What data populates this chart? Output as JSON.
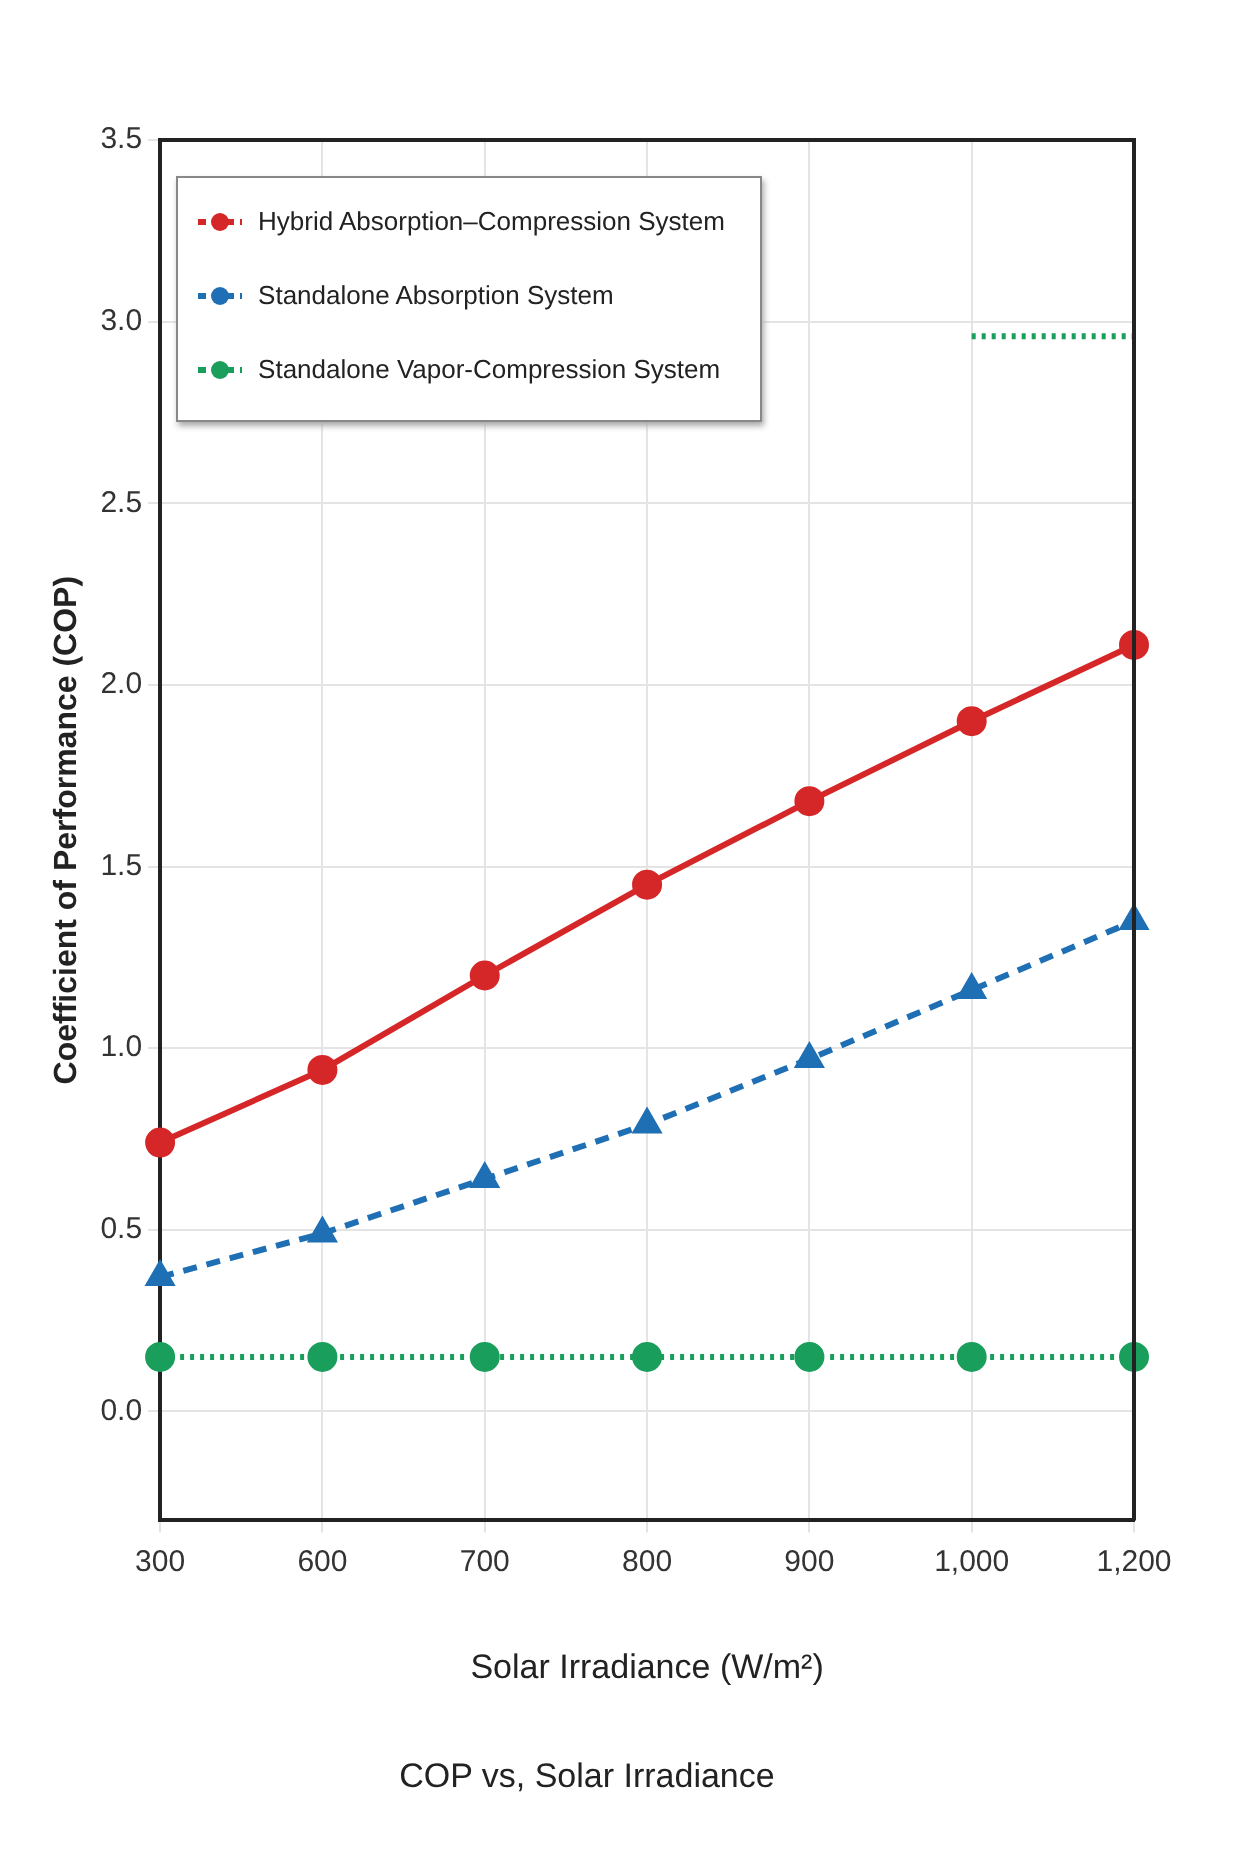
{
  "chart_data": {
    "type": "line",
    "title": "COP vs, Solar Irradiance",
    "xlabel": "Solar Irradiance (W/m²)",
    "ylabel": "Coefficient of Performance (COP)",
    "categories": [
      "300",
      "600",
      "700",
      "800",
      "900",
      "1,000",
      "1,200"
    ],
    "series": [
      {
        "name": "Hybrid Absorption–Compression System",
        "color": "#d62728",
        "marker": "circle",
        "line_style": "solid",
        "values": [
          0.74,
          0.94,
          1.2,
          1.45,
          1.68,
          1.9,
          2.11
        ]
      },
      {
        "name": "Standalone Absorption System",
        "color": "#1f6fb4",
        "marker": "triangle",
        "line_style": "dashed",
        "values": [
          0.37,
          0.49,
          0.64,
          0.79,
          0.97,
          1.16,
          1.35
        ]
      },
      {
        "name": "Standalone Vapor-Compression System",
        "color": "#1a9e5c",
        "marker": "circle",
        "line_style": "dotted",
        "values": [
          0.15,
          0.15,
          0.15,
          0.15,
          0.15,
          0.15,
          0.15
        ]
      },
      {
        "color": "#1a9e5c",
        "marker": "none",
        "line_style": "dotted",
        "values": [
          null,
          null,
          null,
          null,
          null,
          2.96,
          2.96
        ]
      }
    ],
    "ylim": [
      -0.3,
      3.5
    ],
    "yticks": [
      {
        "value": 0,
        "label": "0.0"
      },
      0.5,
      {
        "value": 1,
        "label": "1.0"
      },
      1.5,
      {
        "value": 2,
        "label": "2.0"
      },
      2.5,
      {
        "value": 3,
        "label": "3.0"
      },
      3.5
    ],
    "grid": true,
    "legend": "top left"
  }
}
